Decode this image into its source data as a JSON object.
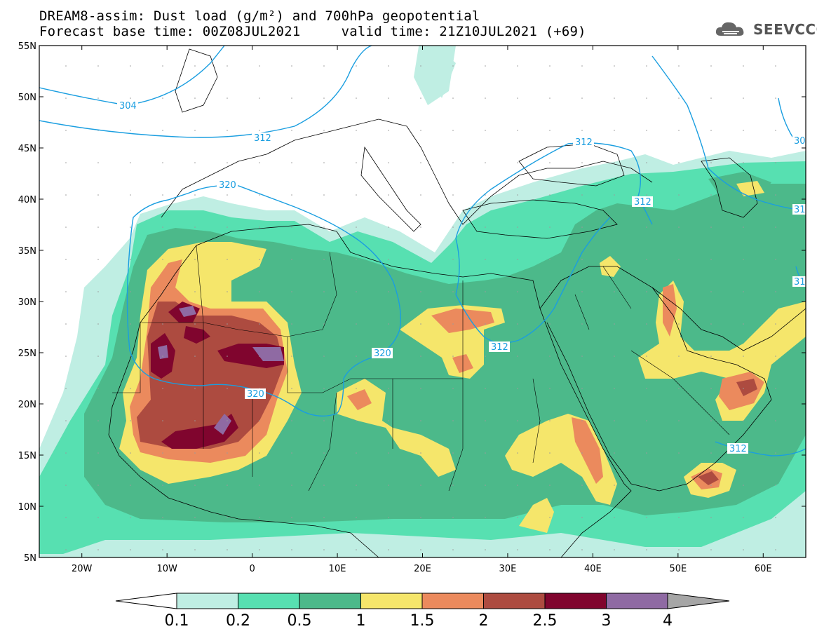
{
  "header": {
    "title_line1": "DREAM8-assim: Dust load (g/m²) and 700hPa geopotential",
    "title_line2": "Forecast base time: 00Z08JUL2021     valid time: 21Z10JUL2021 (+69)"
  },
  "logo": {
    "text": "SEEVCCC",
    "icon": "cloud-icon"
  },
  "map": {
    "lon_labels": [
      "20W",
      "10W",
      "0",
      "10E",
      "20E",
      "30E",
      "40E",
      "50E",
      "60E"
    ],
    "lat_labels": [
      "55N",
      "50N",
      "45N",
      "40N",
      "35N",
      "30N",
      "25N",
      "20N",
      "15N",
      "10N",
      "5N"
    ],
    "lon_range": [
      -25,
      65
    ],
    "lat_range": [
      5,
      55
    ],
    "contour_labels": [
      "304",
      "312",
      "320",
      "320",
      "312",
      "312",
      "312",
      "320",
      "312",
      "30",
      "31",
      "31"
    ]
  },
  "colorbar": {
    "tick_labels": [
      "0.1",
      "0.2",
      "0.5",
      "1",
      "1.5",
      "2",
      "2.5",
      "3",
      "4"
    ],
    "colors": [
      "#ffffff",
      "#bfeee3",
      "#57e0b1",
      "#4cb98a",
      "#f5e66b",
      "#eb8a5d",
      "#ad4b40",
      "#80052e",
      "#8f6aa3",
      "#a6a6a6"
    ]
  }
}
